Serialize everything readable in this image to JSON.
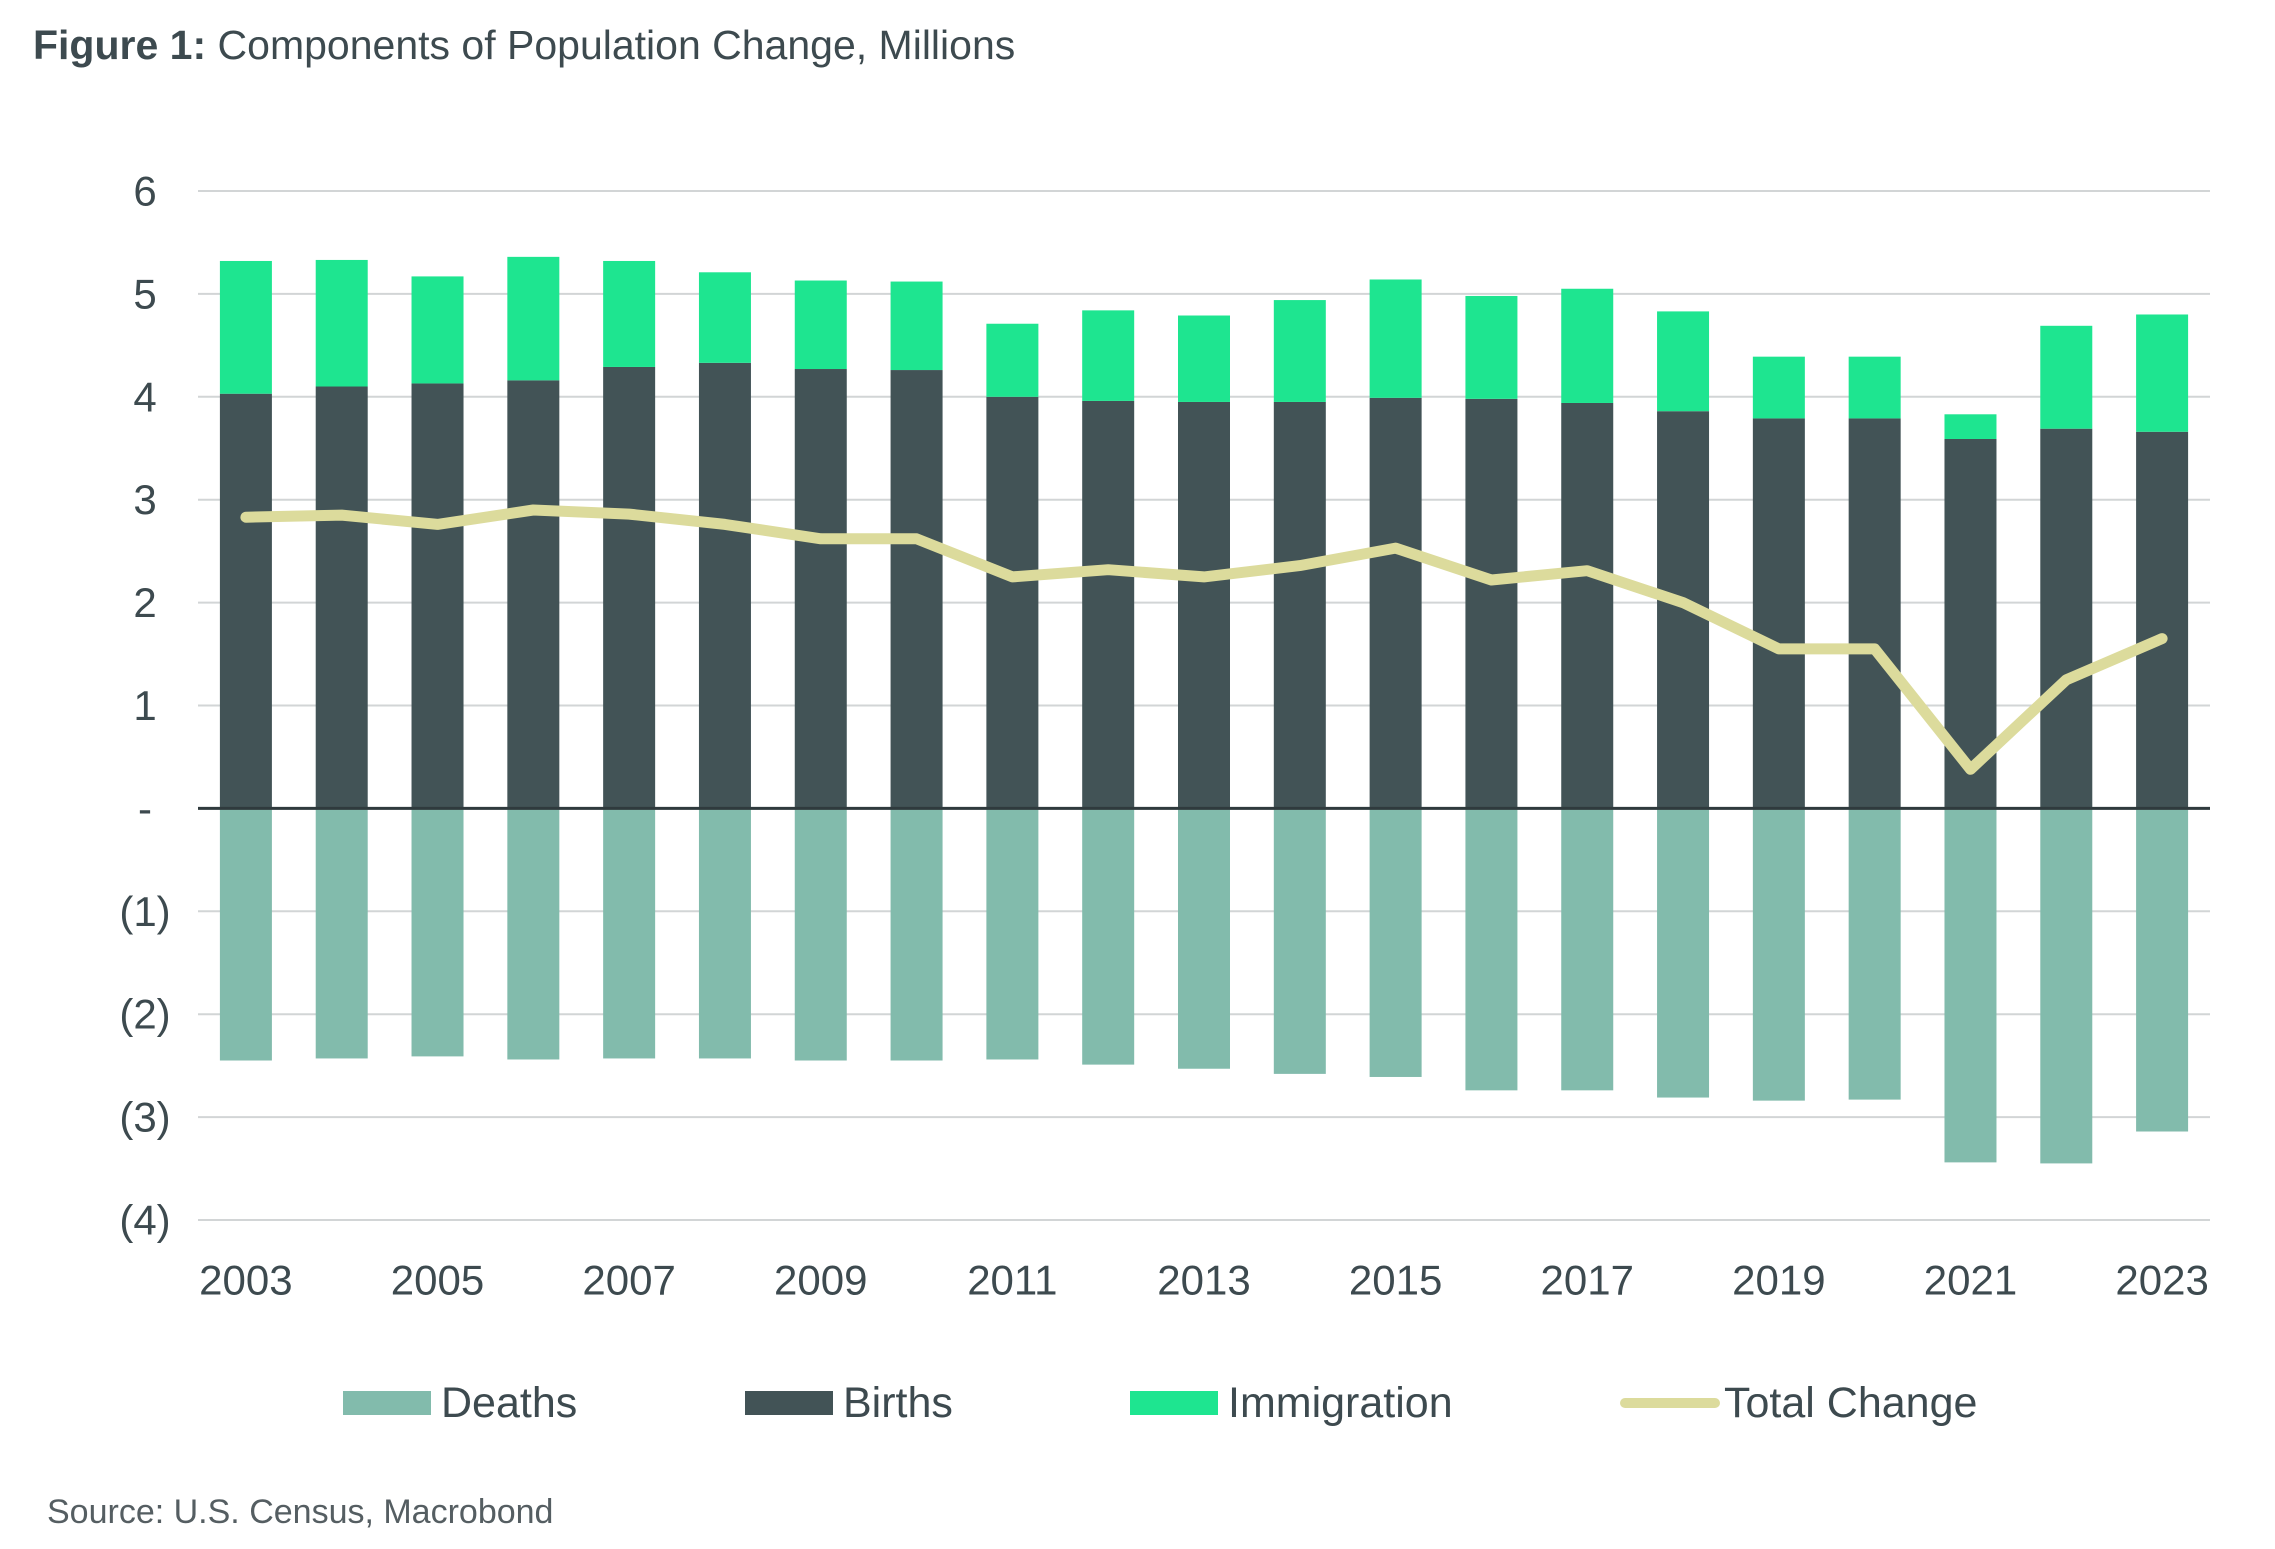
{
  "title": {
    "label": "Figure 1:",
    "text": "Components of Population Change, Millions"
  },
  "source": "Source: U.S. Census, Macrobond",
  "colors": {
    "deaths": "#82bbac",
    "births": "#425356",
    "immigration": "#1ee590",
    "total_change": "#dcdb9c",
    "gridline": "#d2d5d6",
    "zero_line": "#2f3a3d",
    "text": "#3d4a4f"
  },
  "chart_data": {
    "type": "bar",
    "stacked": true,
    "title": "Components of Population Change, Millions",
    "xlabel": "",
    "ylabel": "",
    "ylim": [
      -4,
      6
    ],
    "y_ticks": [
      6,
      5,
      4,
      3,
      2,
      1,
      0,
      -1,
      -2,
      -3,
      -4
    ],
    "y_tick_labels": [
      "6",
      "5",
      "4",
      "3",
      "2",
      "1",
      "-",
      "(1)",
      "(2)",
      "(3)",
      "(4)"
    ],
    "categories": [
      "2003",
      "2004",
      "2005",
      "2006",
      "2007",
      "2008",
      "2009",
      "2010",
      "2011",
      "2012",
      "2013",
      "2014",
      "2015",
      "2016",
      "2017",
      "2018",
      "2019",
      "2020",
      "2021",
      "2022",
      "2023"
    ],
    "x_tick_labels": [
      "2003",
      "",
      "2005",
      "",
      "2007",
      "",
      "2009",
      "",
      "2011",
      "",
      "2013",
      "",
      "2015",
      "",
      "2017",
      "",
      "2019",
      "",
      "2021",
      "",
      "2023"
    ],
    "series": [
      {
        "name": "Deaths",
        "kind": "bar",
        "color_key": "deaths",
        "values": [
          -2.45,
          -2.43,
          -2.41,
          -2.44,
          -2.43,
          -2.43,
          -2.45,
          -2.45,
          -2.44,
          -2.49,
          -2.53,
          -2.58,
          -2.61,
          -2.74,
          -2.74,
          -2.81,
          -2.84,
          -2.83,
          -3.44,
          -3.45,
          -3.14
        ]
      },
      {
        "name": "Births",
        "kind": "bar",
        "color_key": "births",
        "values": [
          4.03,
          4.1,
          4.13,
          4.16,
          4.29,
          4.33,
          4.27,
          4.26,
          4.0,
          3.96,
          3.95,
          3.95,
          3.99,
          3.98,
          3.94,
          3.86,
          3.79,
          3.79,
          3.59,
          3.69,
          3.66
        ]
      },
      {
        "name": "Immigration",
        "kind": "bar",
        "color_key": "immigration",
        "values": [
          1.29,
          1.23,
          1.04,
          1.2,
          1.03,
          0.88,
          0.86,
          0.86,
          0.71,
          0.88,
          0.84,
          0.99,
          1.15,
          1.0,
          1.11,
          0.97,
          0.6,
          0.6,
          0.24,
          1.0,
          1.14
        ]
      },
      {
        "name": "Total Change",
        "kind": "line",
        "color_key": "total_change",
        "values": [
          2.83,
          2.85,
          2.76,
          2.9,
          2.86,
          2.76,
          2.62,
          2.62,
          2.25,
          2.32,
          2.25,
          2.36,
          2.53,
          2.22,
          2.31,
          2.0,
          1.55,
          1.55,
          0.38,
          1.25,
          1.65
        ]
      }
    ],
    "legend": [
      "Deaths",
      "Births",
      "Immigration",
      "Total Change"
    ],
    "legend_position": "bottom",
    "grid": true
  }
}
